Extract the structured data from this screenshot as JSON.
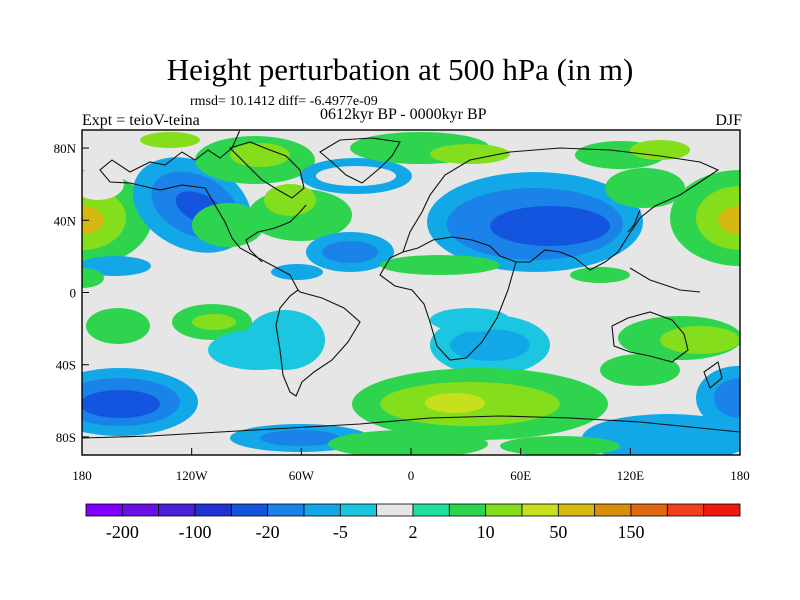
{
  "chart_data": {
    "type": "heatmap",
    "title": "Height perturbation at 500 hPa (in m)",
    "stats": "rmsd= 10.1412 diff= -6.4977e-09",
    "experiment": "Expt = teioV-teina",
    "period": "0612kyr BP - 0000kyr BP",
    "season": "DJF",
    "x_ticks": [
      "180",
      "120W",
      "60W",
      "0",
      "60E",
      "120E",
      "180"
    ],
    "y_ticks": [
      "80N",
      "40N",
      "0",
      "40S",
      "80S"
    ],
    "colorbar_levels": [
      -300,
      -200,
      -150,
      -100,
      -50,
      -20,
      -10,
      -5,
      -2,
      2,
      5,
      10,
      20,
      50,
      100,
      150,
      200,
      300
    ],
    "colorbar_labels": [
      "-200",
      "-100",
      "-20",
      "-5",
      "2",
      "10",
      "50",
      "150"
    ],
    "colors": [
      "#7f00ff",
      "#6a10e6",
      "#4a20d8",
      "#2233d4",
      "#1455e0",
      "#1a82e8",
      "#12a8e8",
      "#1bc6e0",
      "#e6e6e6",
      "#1ee09c",
      "#2ed44e",
      "#84de1c",
      "#c6e01e",
      "#d6b810",
      "#d98f0c",
      "#e06a10",
      "#f04020",
      "#ee1a10"
    ]
  }
}
